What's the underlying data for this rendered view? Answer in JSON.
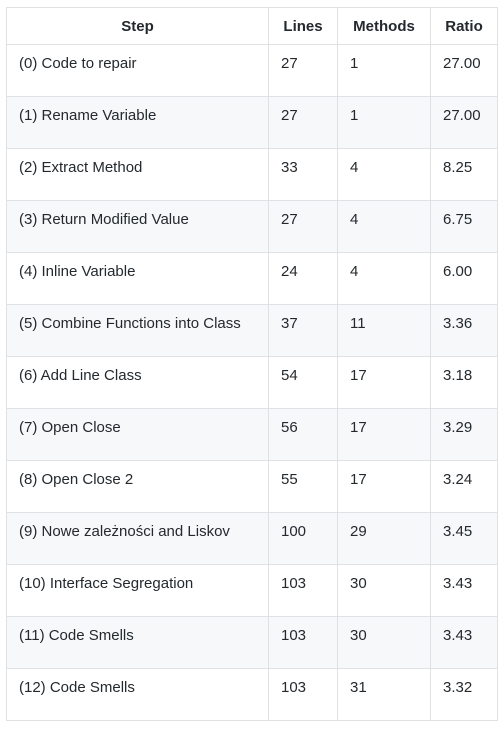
{
  "table": {
    "headers": [
      "Step",
      "Lines",
      "Methods",
      "Ratio"
    ],
    "rows": [
      [
        "(0) Code to repair",
        "27",
        "1",
        "27.00"
      ],
      [
        "(1) Rename Variable",
        "27",
        "1",
        "27.00"
      ],
      [
        "(2) Extract Method",
        "33",
        "4",
        "8.25"
      ],
      [
        "(3) Return Modified Value",
        "27",
        "4",
        "6.75"
      ],
      [
        "(4) Inline Variable",
        "24",
        "4",
        "6.00"
      ],
      [
        "(5) Combine Functions into Class",
        "37",
        "11",
        "3.36"
      ],
      [
        "(6) Add Line Class",
        "54",
        "17",
        "3.18"
      ],
      [
        "(7) Open Close",
        "56",
        "17",
        "3.29"
      ],
      [
        "(8) Open Close 2",
        "55",
        "17",
        "3.24"
      ],
      [
        "(9) Nowe zależności and Liskov",
        "100",
        "29",
        "3.45"
      ],
      [
        "(10) Interface Segregation",
        "103",
        "30",
        "3.43"
      ],
      [
        "(11) Code Smells",
        "103",
        "30",
        "3.43"
      ],
      [
        "(12) Code Smells",
        "103",
        "31",
        "3.32"
      ]
    ]
  }
}
